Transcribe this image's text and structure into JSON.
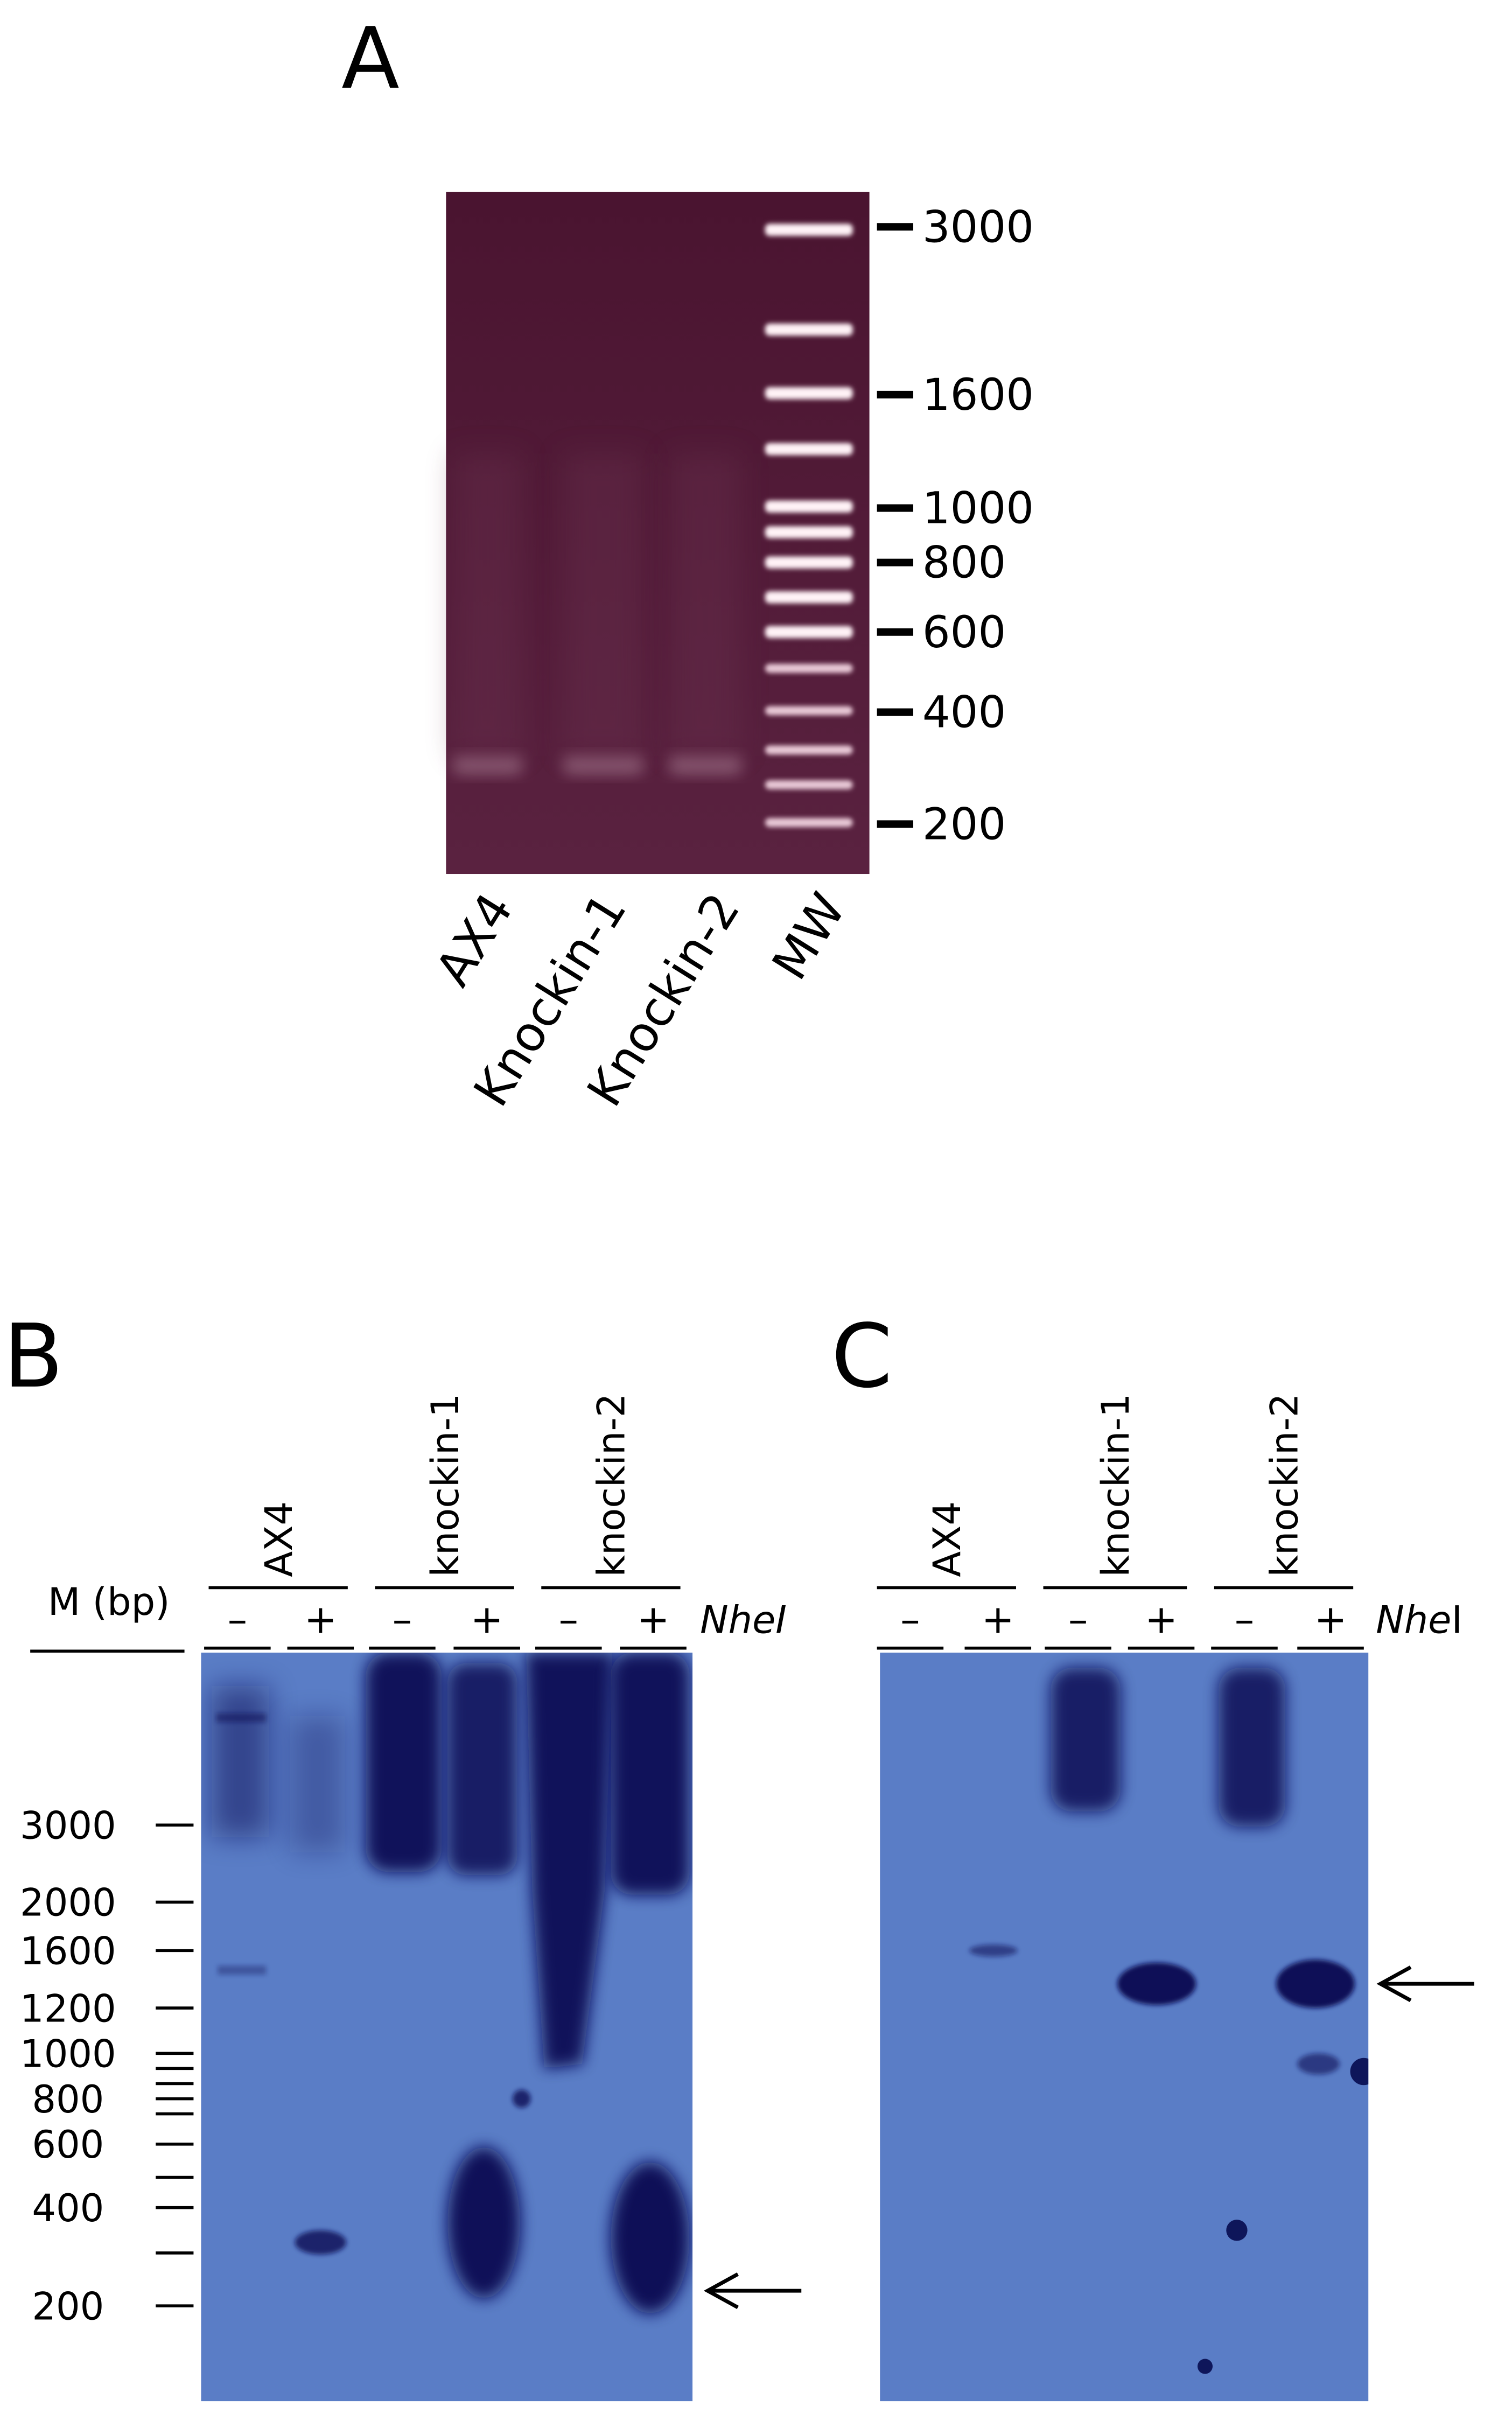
{
  "panel_a": {
    "label": "A",
    "markers": [
      3000,
      1600,
      1000,
      800,
      600,
      400,
      200
    ],
    "lanes": [
      "AX4",
      "Knockin-1",
      "Knockin-2",
      "MW"
    ]
  },
  "panel_b": {
    "label": "B",
    "marker_title": "M (bp)",
    "markers": [
      3000,
      2000,
      1600,
      1200,
      1000,
      800,
      600,
      400,
      200
    ],
    "groups": [
      "AX4",
      "knockin-1",
      "knockin-2"
    ],
    "treatments": [
      "–",
      "+"
    ],
    "enzyme": "NheI"
  },
  "panel_c": {
    "label": "C",
    "groups": [
      "AX4",
      "knockin-1",
      "knockin-2"
    ],
    "treatments": [
      "–",
      "+"
    ],
    "enzyme": {
      "italic": "Nhe",
      "roman": "I"
    }
  }
}
